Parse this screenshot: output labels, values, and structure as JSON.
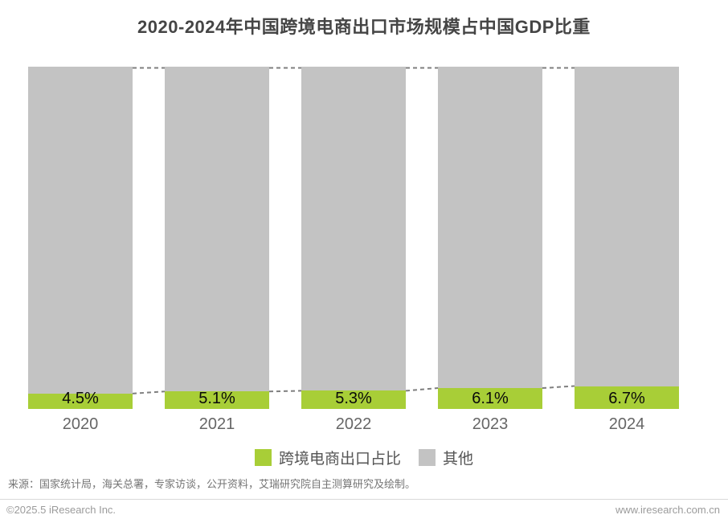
{
  "title": "2020-2024年中国跨境电商出口市场规模占中国GDP比重",
  "chart_data": {
    "type": "bar",
    "subtype": "stacked-percent-column",
    "title": "2020-2024年中国跨境电商出口市场规模占中国GDP比重",
    "categories": [
      "2020",
      "2021",
      "2022",
      "2023",
      "2024"
    ],
    "series": [
      {
        "name": "跨境电商出口占比",
        "color": "#a8ce37",
        "values": [
          4.5,
          5.1,
          5.3,
          6.1,
          6.7
        ]
      },
      {
        "name": "其他",
        "color": "#c3c3c3",
        "values": [
          95.5,
          94.9,
          94.7,
          93.9,
          93.3
        ]
      }
    ],
    "value_labels": [
      "4.5%",
      "5.1%",
      "5.3%",
      "6.1%",
      "6.7%"
    ],
    "ylim": [
      0,
      100
    ],
    "grid": false,
    "axes_visible": false,
    "legend_position": "bottom",
    "connectors": "dashed lines joining segment boundaries of adjacent bars"
  },
  "legend": {
    "items": [
      {
        "label": "跨境电商出口占比",
        "color": "#a8ce37"
      },
      {
        "label": "其他",
        "color": "#c3c3c3"
      }
    ]
  },
  "source_note": "来源：国家统计局，海关总署，专家访谈，公开资料，艾瑞研究院自主测算研究及绘制。",
  "footer": {
    "copyright": "©2025.5 iResearch Inc.",
    "website": "www.iresearch.com.cn"
  },
  "colors": {
    "green": "#a8ce37",
    "gray": "#c3c3c3",
    "dashed_line": "#7f7f7f",
    "title_text": "#454545",
    "value_text": "#0a0a0a",
    "axis_text": "#666666",
    "source_text": "#757575",
    "footer_text": "#9b9b9b"
  }
}
